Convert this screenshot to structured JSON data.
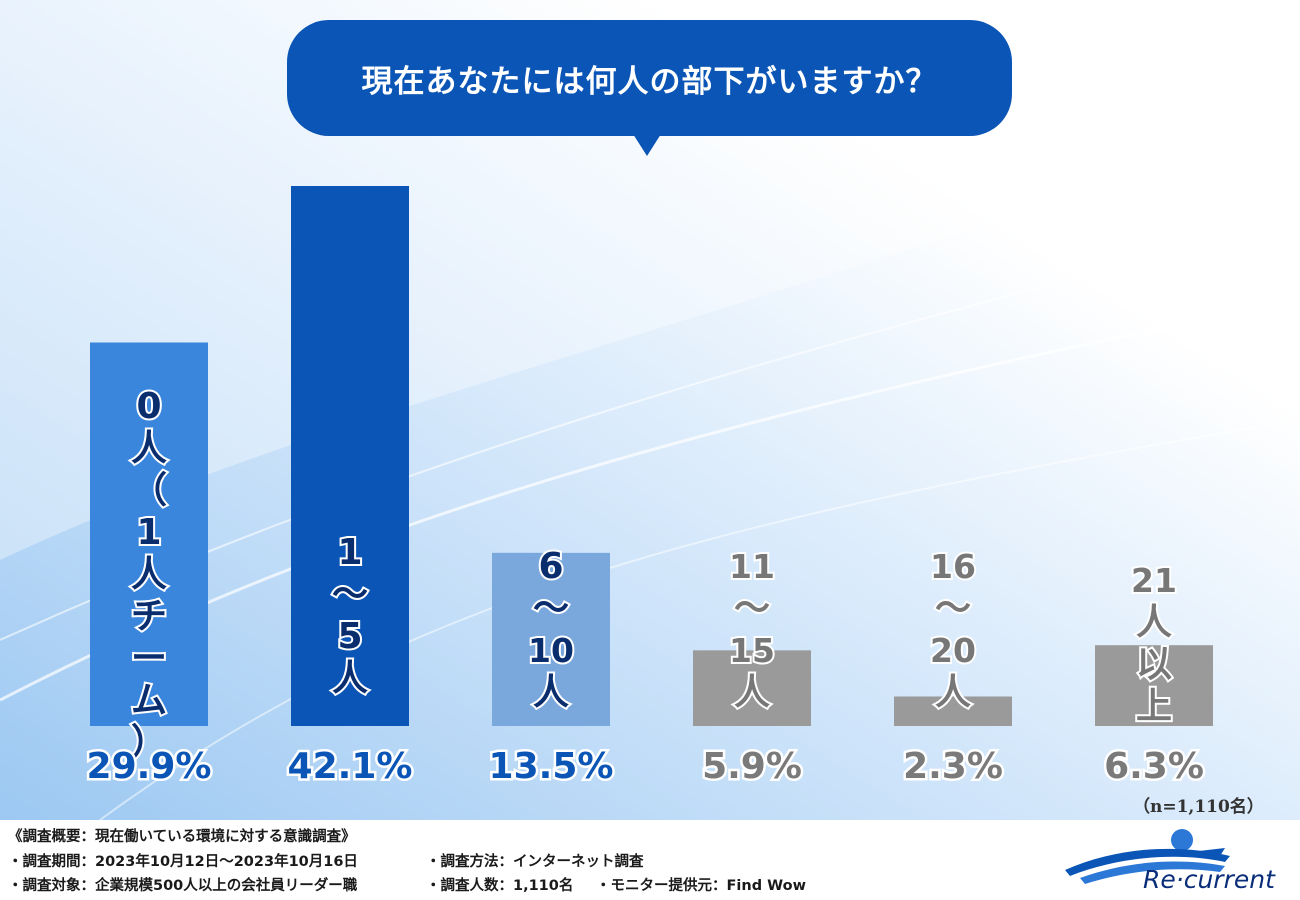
{
  "question": "現在あなたには何人の部下がいますか？",
  "chart_data": {
    "type": "bar",
    "title": "現在あなたには何人の部下がいますか？",
    "categories": [
      "0人（1人チーム）",
      "1〜5人",
      "6〜10人",
      "11〜15人",
      "16〜20人",
      "21人以上"
    ],
    "category_lines": [
      [
        "0",
        "人",
        "（",
        "1",
        "人",
        "チ",
        "ー",
        "ム",
        "）"
      ],
      [
        "1",
        "〜",
        "5",
        "人"
      ],
      [
        "6",
        "〜",
        "10",
        "人"
      ],
      [
        "11",
        "〜",
        "15",
        "人"
      ],
      [
        "16",
        "〜",
        "20",
        "人"
      ],
      [
        "21",
        "人",
        "以",
        "上"
      ]
    ],
    "values": [
      29.9,
      42.1,
      13.5,
      5.9,
      2.3,
      6.3
    ],
    "value_labels": [
      "29.9%",
      "42.1%",
      "13.5%",
      "5.9%",
      "2.3%",
      "6.3%"
    ],
    "colors": [
      "#3a86dc",
      "#0a55b5",
      "#7aa8dc",
      "#9a9a9a",
      "#9a9a9a",
      "#9a9a9a"
    ],
    "ylim": [
      0,
      42.1
    ],
    "xlabel": "",
    "ylabel": "",
    "grid": false
  },
  "sample_note": "（n=1,110名）",
  "footer": {
    "overview": "《調査概要：現在働いている環境に対する意識調査》",
    "period": "・調査期間：2023年10月12日〜2023年10月16日",
    "method": "・調査方法：インターネット調査",
    "target": "・調査対象：企業規模500人以上の会社員リーダー職",
    "respondents": "・調査人数：1,110名",
    "monitor": "・モニター提供元：Find Wow"
  },
  "logo_text": "Re·current",
  "theme": {
    "accent": "#0a55b5",
    "value_blue": "#0a55b5",
    "value_gray": "#7a7a7a"
  }
}
